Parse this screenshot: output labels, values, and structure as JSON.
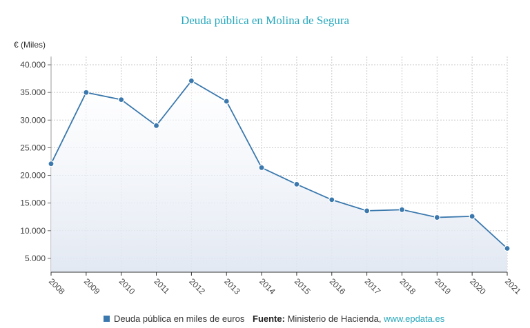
{
  "chart_data": {
    "type": "area",
    "title": "Deuda pública en Molina de Segura",
    "ylabel": "€ (Miles)",
    "xlabel": "",
    "categories": [
      "2008",
      "2009",
      "2010",
      "2011",
      "2012",
      "2013",
      "2014",
      "2015",
      "2016",
      "2017",
      "2018",
      "2019",
      "2020",
      "2021"
    ],
    "series": [
      {
        "name": "Deuda pública en miles de euros",
        "values": [
          22100,
          35000,
          33700,
          29000,
          37100,
          33400,
          21400,
          18400,
          15600,
          13600,
          13800,
          12400,
          12600,
          6800
        ],
        "color": "#3a78ad"
      }
    ],
    "ylim": [
      2500,
      41500
    ],
    "yticks": [
      5000,
      10000,
      15000,
      20000,
      25000,
      30000,
      35000,
      40000
    ],
    "ytick_labels": [
      "5.000",
      "10.000",
      "15.000",
      "20.000",
      "25.000",
      "30.000",
      "35.000",
      "40.000"
    ],
    "grid": true,
    "legend_position": "bottom"
  },
  "footer": {
    "legend_label": "Deuda pública en miles de euros",
    "source_label": "Fuente:",
    "source_text": "Ministerio de Hacienda,",
    "source_link": "www.epdata.es"
  }
}
